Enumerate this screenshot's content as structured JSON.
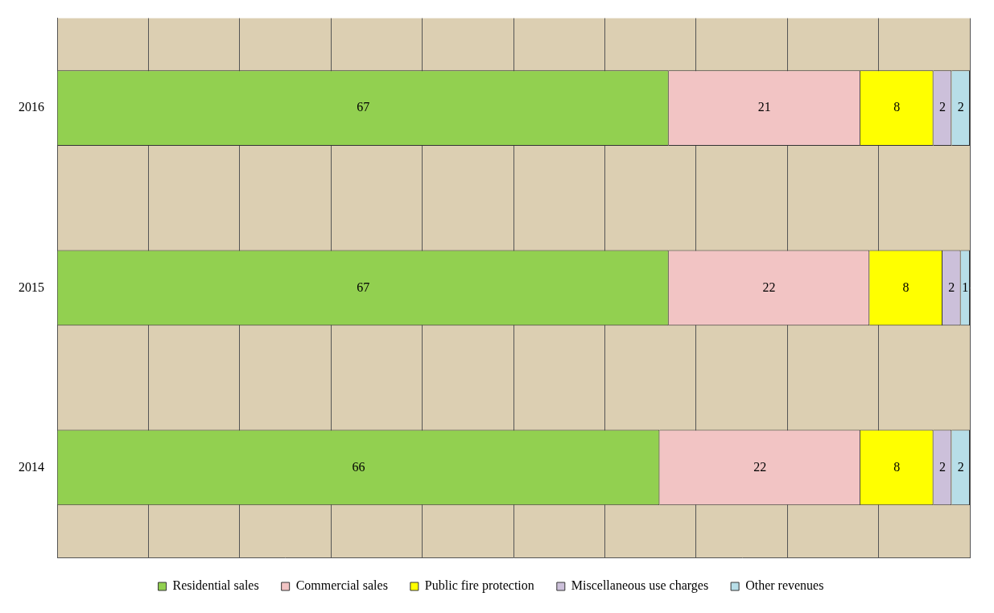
{
  "chart_data": {
    "type": "bar",
    "orientation": "horizontal",
    "stacked": true,
    "data_labels": true,
    "grid": true,
    "legend": "bottom",
    "tick_labels": "y",
    "categories": [
      "2016",
      "2015",
      "2014"
    ],
    "xlim": [
      0,
      100
    ],
    "xticks": [
      0,
      10,
      20,
      30,
      40,
      50,
      60,
      70,
      80,
      90,
      100
    ],
    "series": [
      {
        "name": "Residential sales",
        "color": "#92d050",
        "values": [
          67,
          67,
          66
        ]
      },
      {
        "name": "Commercial sales",
        "color": "#f2c4c4",
        "values": [
          21,
          22,
          22
        ]
      },
      {
        "name": "Public fire protection",
        "color": "#ffff00",
        "values": [
          8,
          8,
          8
        ]
      },
      {
        "name": "Miscellaneous use charges",
        "color": "#ccc0da",
        "values": [
          2,
          2,
          2
        ]
      },
      {
        "name": "Other revenues",
        "color": "#b7dee8",
        "values": [
          2,
          1,
          2
        ]
      }
    ]
  }
}
